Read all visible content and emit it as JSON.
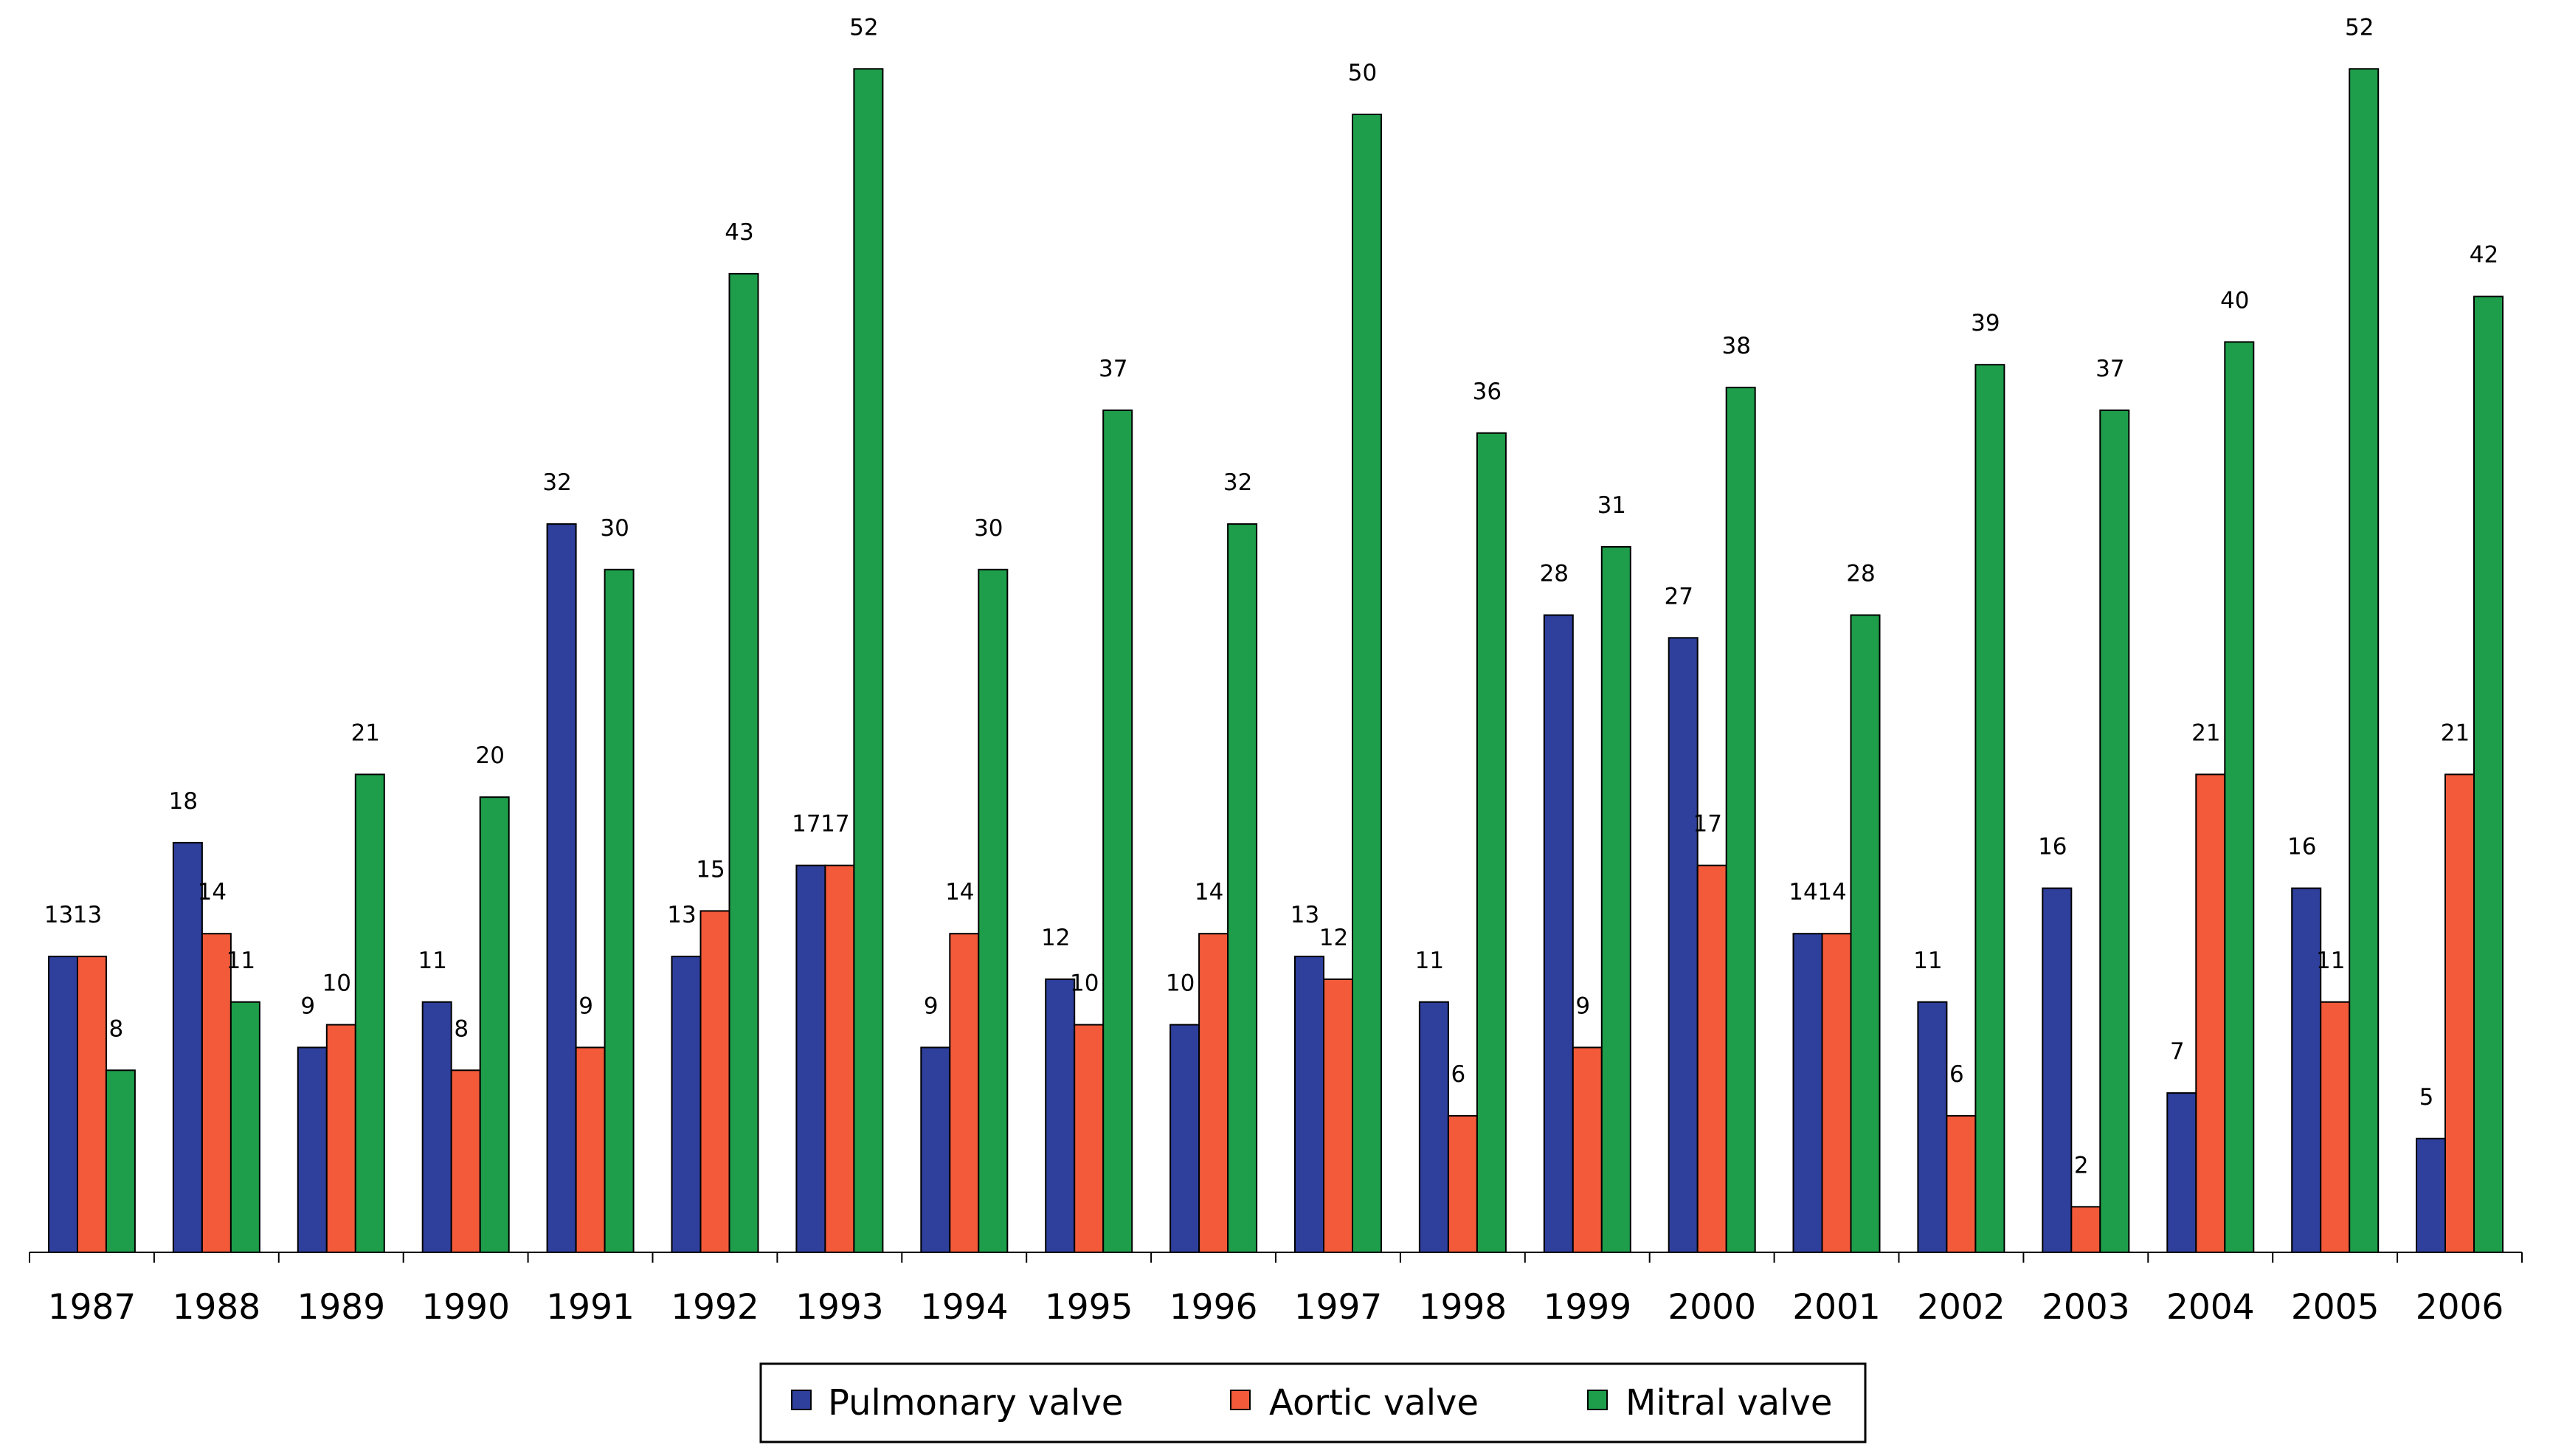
{
  "chart_data": {
    "type": "bar",
    "title": "",
    "xlabel": "",
    "ylabel": "",
    "ylim": [
      0,
      55
    ],
    "grid": false,
    "legend_position": "bottom",
    "categories": [
      "1987",
      "1988",
      "1989",
      "1990",
      "1991",
      "1992",
      "1993",
      "1994",
      "1995",
      "1996",
      "1997",
      "1998",
      "1999",
      "2000",
      "2001",
      "2002",
      "2003",
      "2004",
      "2005",
      "2006"
    ],
    "series": [
      {
        "name": "Pulmonary valve",
        "color": "#2e3f9c",
        "values": [
          13,
          18,
          9,
          11,
          32,
          13,
          17,
          9,
          12,
          10,
          13,
          11,
          28,
          27,
          14,
          11,
          16,
          7,
          16,
          5
        ]
      },
      {
        "name": "Aortic valve",
        "color": "#f25a3a",
        "values": [
          13,
          14,
          10,
          8,
          9,
          15,
          17,
          14,
          10,
          14,
          12,
          6,
          9,
          17,
          14,
          6,
          2,
          21,
          11,
          21
        ]
      },
      {
        "name": "Mitral valve",
        "color": "#1e9e4a",
        "values": [
          8,
          11,
          21,
          20,
          30,
          43,
          52,
          30,
          37,
          32,
          50,
          36,
          31,
          38,
          28,
          39,
          37,
          40,
          52,
          42
        ]
      }
    ]
  }
}
